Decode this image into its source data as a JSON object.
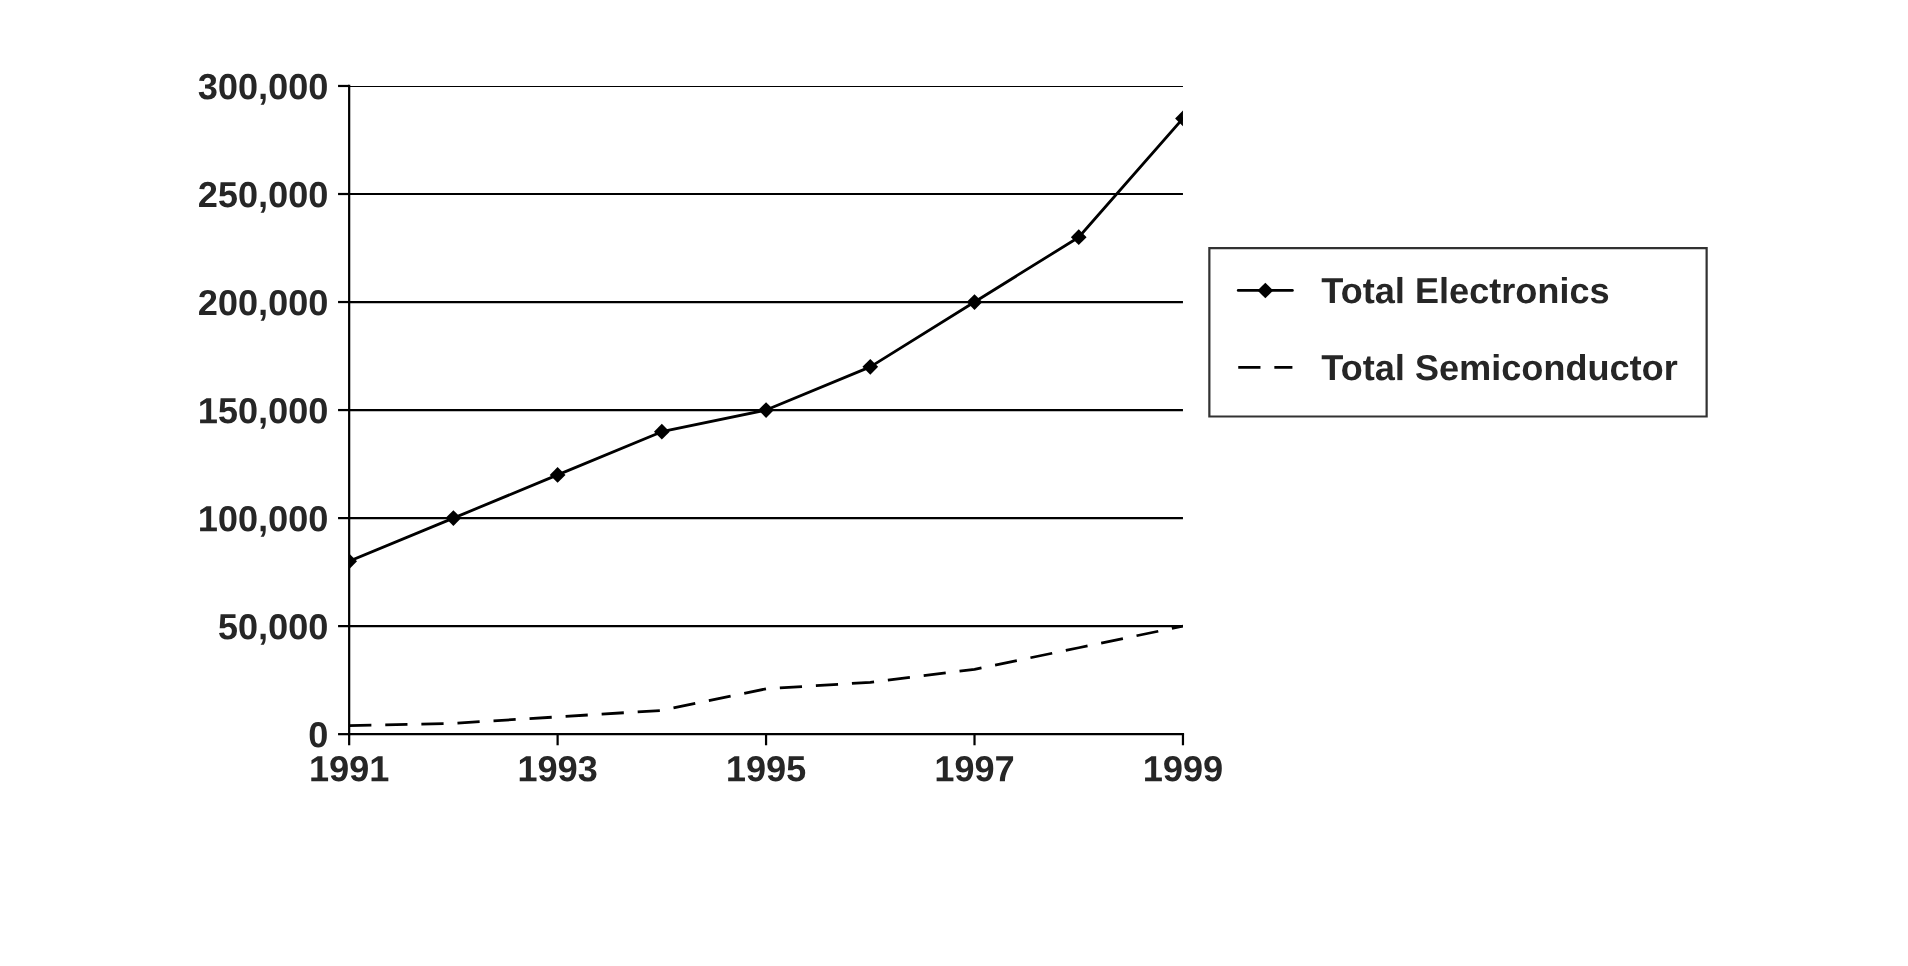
{
  "chart_data": {
    "type": "line",
    "x": [
      1991,
      1992,
      1993,
      1994,
      1995,
      1996,
      1997,
      1998,
      1999
    ],
    "series": [
      {
        "name": "Total Electronics",
        "color": "#000000",
        "marker": "diamond",
        "line_style": "solid",
        "values": [
          80000,
          100000,
          120000,
          140000,
          150000,
          170000,
          200000,
          230000,
          285000
        ]
      },
      {
        "name": "Total Semiconductor",
        "color": "#000000",
        "marker": "none",
        "line_style": "dashed",
        "values": [
          4000,
          5000,
          8000,
          11000,
          21000,
          24000,
          30000,
          40000,
          50000
        ]
      }
    ],
    "xlim": [
      1991,
      1999
    ],
    "xticks": [
      1991,
      1993,
      1995,
      1997,
      1999
    ],
    "ylim": [
      0,
      300000
    ],
    "yticks": [
      {
        "value": 0,
        "label": "0"
      },
      {
        "value": 50000,
        "label": "50,000"
      },
      {
        "value": 100000,
        "label": "100,000"
      },
      {
        "value": 150000,
        "label": "150,000"
      },
      {
        "value": 200000,
        "label": "200,000"
      },
      {
        "value": 250000,
        "label": "250,000"
      },
      {
        "value": 300000,
        "label": "300,000"
      }
    ],
    "grid": "y",
    "legend": "right"
  }
}
